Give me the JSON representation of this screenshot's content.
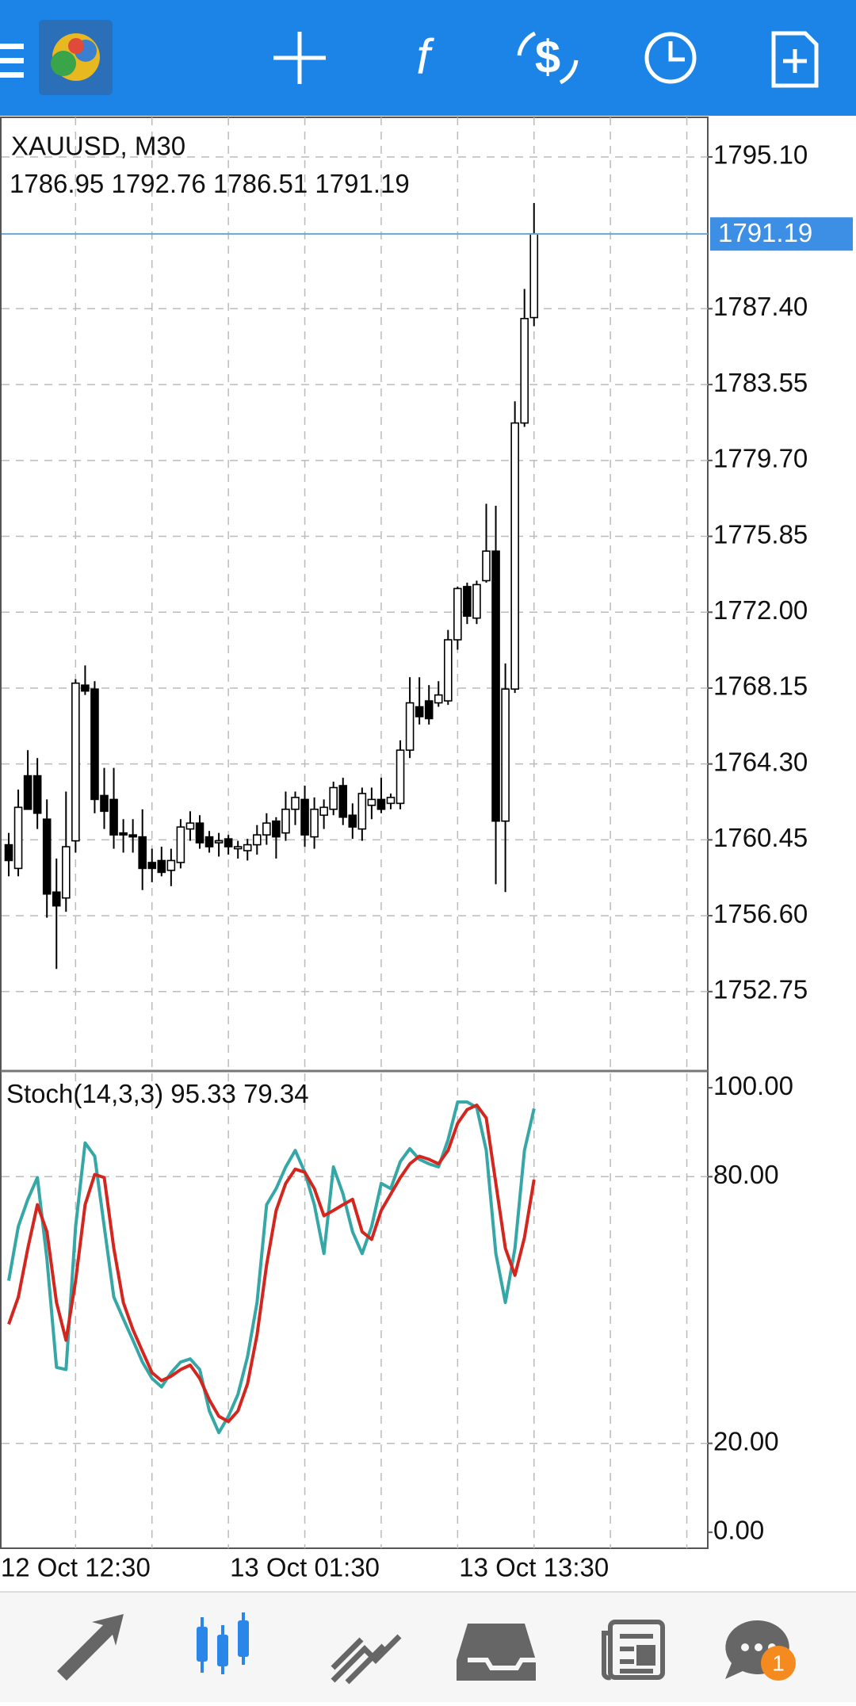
{
  "chart_data": [
    {
      "type": "candlestick",
      "title": "XAUUSD, M30",
      "categories": [
        null,
        null,
        null,
        null,
        null,
        null,
        null,
        "12 Oct 12:30",
        null,
        null,
        null,
        null,
        null,
        null,
        null,
        null,
        null,
        null,
        null,
        null,
        null,
        null,
        null,
        null,
        null,
        null,
        null,
        null,
        null,
        null,
        null,
        "13 Oct 01:30",
        null,
        null,
        null,
        null,
        null,
        null,
        null,
        null,
        null,
        null,
        null,
        null,
        null,
        null,
        null,
        null,
        null,
        null,
        null,
        null,
        null,
        null,
        null,
        "13 Oct 13:30"
      ],
      "open": [
        1760.2,
        1759.0,
        1763.7,
        1763.7,
        1761.5,
        1757.8,
        1757.5,
        1760.4,
        1768.3,
        1768.1,
        1762.7,
        1762.5,
        1760.8,
        1760.7,
        1760.6,
        1759.3,
        1759.4,
        1758.9,
        1759.3,
        1761.0,
        1761.3,
        1760.6,
        1760.3,
        1760.5,
        1760.0,
        1759.9,
        1760.2,
        1760.7,
        1761.4,
        1760.8,
        1762.0,
        1762.5,
        1760.6,
        1761.7,
        1762.0,
        1763.2,
        1761.7,
        1761.0,
        1762.2,
        1762.5,
        1762.3,
        1762.3,
        1765.0,
        1767.2,
        1767.5,
        1767.4,
        1767.5,
        1770.6,
        1773.3,
        1771.7,
        1773.6,
        1775.1,
        1761.4,
        1768.1,
        1781.6,
        1786.95
      ],
      "high": [
        1760.8,
        1763.0,
        1765.0,
        1764.6,
        1762.5,
        1759.5,
        1762.9,
        1768.6,
        1769.3,
        1768.5,
        1764.1,
        1764.1,
        1761.5,
        1761.5,
        1762.0,
        1760.0,
        1760.1,
        1760.0,
        1761.5,
        1761.9,
        1761.7,
        1760.9,
        1760.8,
        1760.7,
        1760.4,
        1760.5,
        1761.2,
        1761.8,
        1761.6,
        1762.9,
        1762.9,
        1763.2,
        1762.6,
        1762.5,
        1763.4,
        1763.6,
        1762.3,
        1763.1,
        1763.1,
        1763.6,
        1762.8,
        1765.5,
        1768.7,
        1768.7,
        1768.3,
        1768.5,
        1771.1,
        1773.3,
        1773.5,
        1773.6,
        1777.5,
        1777.4,
        1769.4,
        1782.7,
        1788.4,
        1792.76
      ],
      "low": [
        1758.6,
        1758.6,
        1762.0,
        1761.0,
        1756.5,
        1753.9,
        1756.8,
        1759.8,
        1767.8,
        1761.8,
        1761.0,
        1760.0,
        1759.8,
        1759.8,
        1757.9,
        1758.3,
        1758.6,
        1758.1,
        1759.0,
        1760.4,
        1760.0,
        1759.8,
        1759.6,
        1759.7,
        1759.5,
        1759.4,
        1759.7,
        1760.2,
        1759.5,
        1760.4,
        1761.2,
        1760.1,
        1760.0,
        1761.0,
        1761.7,
        1761.2,
        1760.5,
        1760.4,
        1761.5,
        1761.8,
        1762.0,
        1762.0,
        1764.6,
        1766.3,
        1766.3,
        1767.2,
        1767.3,
        1770.1,
        1771.4,
        1771.4,
        1773.5,
        1758.2,
        1757.8,
        1767.9,
        1781.4,
        1786.51
      ],
      "close": [
        1759.4,
        1762.1,
        1762.0,
        1761.8,
        1757.7,
        1757.1,
        1760.1,
        1768.4,
        1768.0,
        1762.5,
        1761.9,
        1760.7,
        1760.7,
        1760.6,
        1759.0,
        1759.0,
        1758.8,
        1759.4,
        1761.1,
        1761.3,
        1760.3,
        1760.1,
        1760.4,
        1760.1,
        1760.1,
        1760.2,
        1760.7,
        1761.3,
        1760.6,
        1762.0,
        1762.6,
        1760.7,
        1762.0,
        1762.1,
        1763.1,
        1761.6,
        1761.1,
        1762.8,
        1762.5,
        1762.0,
        1762.6,
        1765.0,
        1767.4,
        1766.7,
        1766.6,
        1767.8,
        1770.6,
        1773.2,
        1771.8,
        1773.4,
        1775.1,
        1761.4,
        1768.1,
        1781.6,
        1786.9,
        1791.19
      ],
      "up_color": "#ffffff",
      "down_color": "#000000",
      "price_line_color": "#6aa6cf",
      "price_label_color": "#3d8fe6",
      "ylim": [
        1748.76,
        1797.11
      ],
      "yticks": [
        {
          "value": 1752.75,
          "label": "1752.75"
        },
        {
          "value": 1756.6,
          "label": "1756.60"
        },
        {
          "value": 1760.45,
          "label": "1760.45"
        },
        {
          "value": 1764.3,
          "label": "1764.30"
        },
        {
          "value": 1768.15,
          "label": "1768.15"
        },
        {
          "value": 1772,
          "label": "1772.00"
        },
        {
          "value": 1775.85,
          "label": "1775.85"
        },
        {
          "value": 1779.7,
          "label": "1779.70"
        },
        {
          "value": 1783.55,
          "label": "1783.55"
        },
        {
          "value": 1787.4,
          "label": "1787.40"
        },
        {
          "value": 1795.1,
          "label": "1795.10"
        }
      ],
      "grid": true
    },
    {
      "type": "line",
      "title": "Stoch(14,3,3)",
      "series": [
        {
          "color": "#35a7a7",
          "values": [
            56.6,
            68.8,
            74.9,
            79.8,
            61.5,
            37.1,
            36.6,
            68.8,
            87.6,
            84.6,
            68.8,
            52.9,
            48,
            43.2,
            38.3,
            34.6,
            32.7,
            35.9,
            38.3,
            39,
            36.6,
            27.3,
            22.4,
            26.1,
            31,
            39.5,
            51.7,
            73.7,
            77.3,
            82.2,
            85.9,
            81,
            73.7,
            62.7,
            82.2,
            76.1,
            67.6,
            62.7,
            68.8,
            78.5,
            77.3,
            83.4,
            86.3,
            83.9,
            82.9,
            82.2,
            88.3,
            96.8,
            96.8,
            95.6,
            85.9,
            62.7,
            51.7,
            63.9,
            85.9,
            95.33
          ]
        },
        {
          "color": "#d3261f",
          "values": [
            46.8,
            52.9,
            63.9,
            73.7,
            67.6,
            51.7,
            43.2,
            56.6,
            73.7,
            80.5,
            79.8,
            63.9,
            51.7,
            45.6,
            40.7,
            35.9,
            34.1,
            35.1,
            36.6,
            37.6,
            34.6,
            29.8,
            26.1,
            24.9,
            27.3,
            33.4,
            44.4,
            60.2,
            72.4,
            78.5,
            81.7,
            81,
            77.3,
            71.2,
            72.4,
            73.7,
            74.9,
            67.6,
            65.9,
            72.4,
            76.1,
            79.8,
            82.9,
            84.6,
            83.9,
            82.9,
            85.9,
            92,
            95.1,
            96.1,
            93.2,
            78.5,
            63.9,
            57.8,
            66.3,
            79.34
          ]
        }
      ],
      "ylim": [
        -3.6,
        103.6
      ],
      "yticks": [
        {
          "value": 0,
          "label": "0.00"
        },
        {
          "value": 20,
          "label": "20.00"
        },
        {
          "value": 80,
          "label": "80.00"
        },
        {
          "value": 100,
          "label": "100.00"
        }
      ],
      "grid_levels": [
        20,
        80
      ]
    }
  ],
  "notifications": {
    "badge": 1
  }
}
